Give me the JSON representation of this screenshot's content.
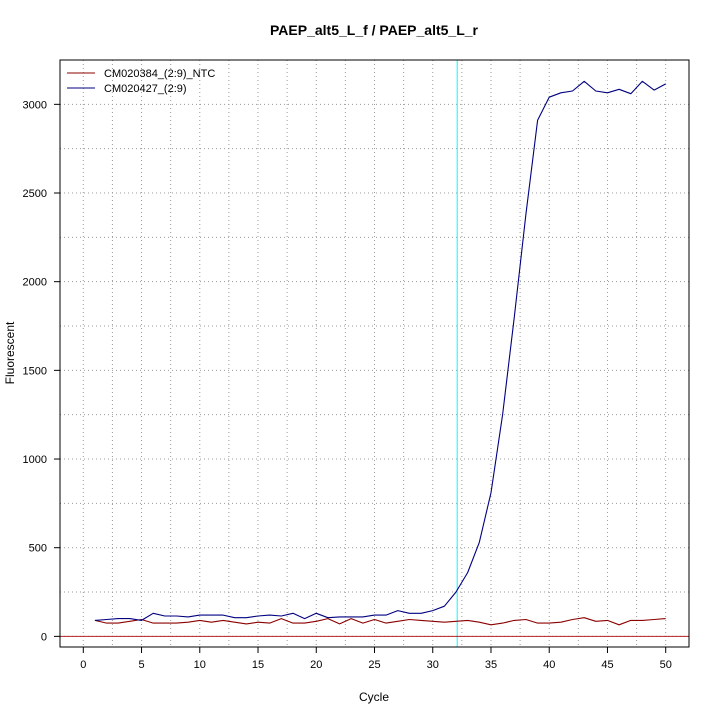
{
  "chart_data": {
    "type": "line",
    "title": "PAEP_alt5_L_f / PAEP_alt5_L_r",
    "xlabel": "Cycle",
    "ylabel": "Fluorescent",
    "xlim": [
      -2,
      52
    ],
    "ylim": [
      -60,
      3250
    ],
    "xticks": [
      0,
      5,
      10,
      15,
      20,
      25,
      30,
      35,
      40,
      45,
      50
    ],
    "yticks": [
      0,
      500,
      1000,
      1500,
      2000,
      2500,
      3000
    ],
    "grid": true,
    "legend_position": "top-left",
    "threshold": {
      "x": 32.1,
      "color": "#00ffff"
    },
    "baseline": {
      "y": 0,
      "color": "#b22222"
    },
    "series": [
      {
        "name": "CM020384_(2:9)_NTC",
        "color": "#8b0000",
        "x": [
          1,
          2,
          3,
          4,
          5,
          6,
          7,
          8,
          9,
          10,
          11,
          12,
          13,
          14,
          15,
          16,
          17,
          18,
          19,
          20,
          21,
          22,
          23,
          24,
          25,
          26,
          27,
          28,
          29,
          30,
          31,
          32,
          33,
          34,
          35,
          36,
          37,
          38,
          39,
          40,
          41,
          42,
          43,
          44,
          45,
          46,
          47,
          48,
          49,
          50
        ],
        "y": [
          90,
          75,
          75,
          85,
          95,
          75,
          75,
          75,
          80,
          90,
          80,
          90,
          80,
          70,
          80,
          75,
          100,
          75,
          75,
          85,
          100,
          70,
          100,
          75,
          95,
          75,
          85,
          95,
          90,
          85,
          80,
          85,
          90,
          80,
          65,
          75,
          90,
          95,
          75,
          75,
          80,
          95,
          105,
          85,
          90,
          65,
          90,
          90,
          95,
          100
        ]
      },
      {
        "name": "CM020427_(2:9)",
        "color": "#000080",
        "x": [
          1,
          2,
          3,
          4,
          5,
          6,
          7,
          8,
          9,
          10,
          11,
          12,
          13,
          14,
          15,
          16,
          17,
          18,
          19,
          20,
          21,
          22,
          23,
          24,
          25,
          26,
          27,
          28,
          29,
          30,
          31,
          32,
          33,
          34,
          35,
          36,
          37,
          38,
          39,
          40,
          41,
          42,
          43,
          44,
          45,
          46,
          47,
          48,
          49,
          50
        ],
        "y": [
          90,
          95,
          100,
          100,
          90,
          130,
          115,
          115,
          110,
          120,
          120,
          120,
          105,
          105,
          115,
          120,
          115,
          130,
          100,
          130,
          105,
          110,
          110,
          110,
          120,
          120,
          145,
          130,
          130,
          145,
          170,
          250,
          360,
          530,
          810,
          1250,
          1800,
          2380,
          2910,
          3040,
          3065,
          3075,
          3130,
          3075,
          3065,
          3085,
          3060,
          3130,
          3080,
          3115
        ]
      }
    ]
  }
}
